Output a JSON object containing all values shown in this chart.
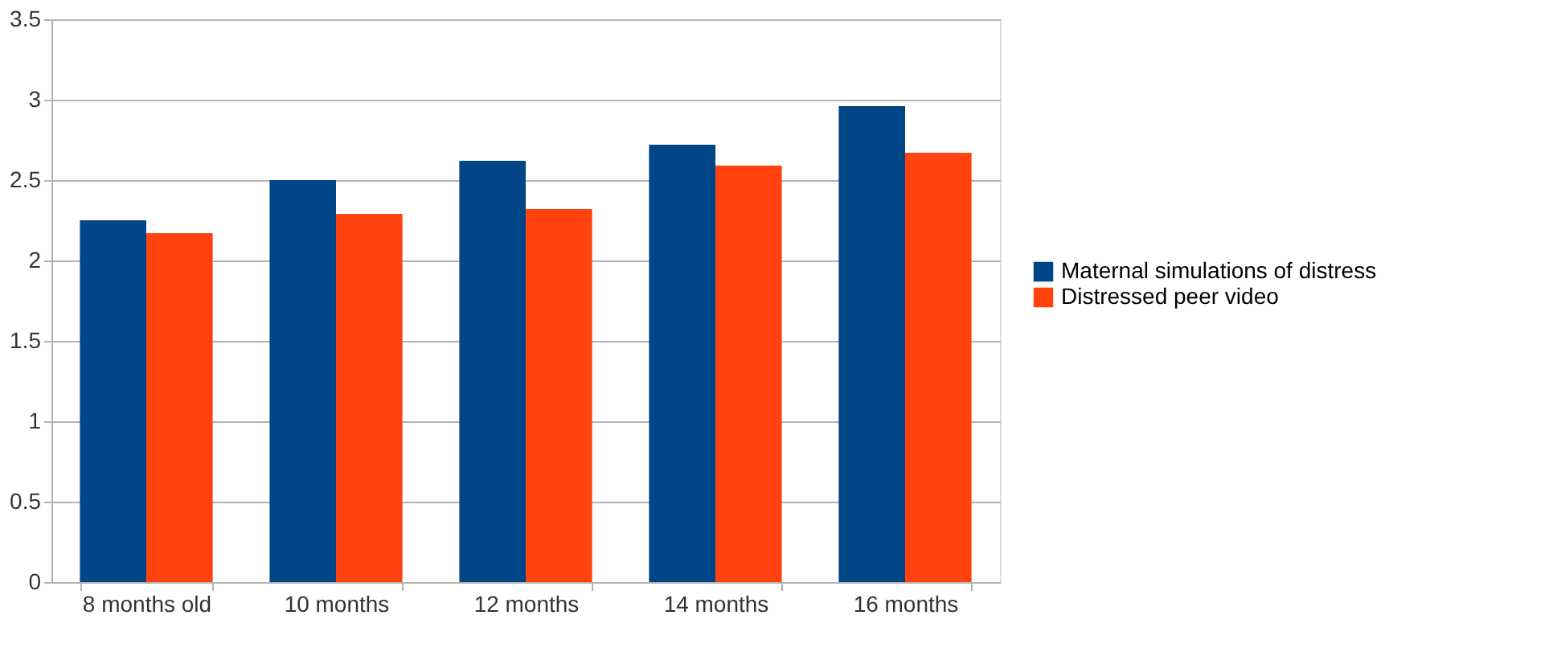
{
  "chart_data": {
    "type": "bar",
    "categories": [
      "8 months old",
      "10 months",
      "12 months",
      "14 months",
      "16 months"
    ],
    "series": [
      {
        "name": "Maternal simulations of distress",
        "color": "#004586",
        "values": [
          2.25,
          2.5,
          2.62,
          2.72,
          2.96
        ]
      },
      {
        "name": "Distressed peer video",
        "color": "#ff420e",
        "values": [
          2.17,
          2.29,
          2.32,
          2.59,
          2.67
        ]
      }
    ],
    "ylim": [
      0,
      3.5
    ],
    "yticks": [
      0,
      0.5,
      1,
      1.5,
      2,
      2.5,
      3,
      3.5
    ],
    "grid": "y",
    "legend": "right"
  }
}
